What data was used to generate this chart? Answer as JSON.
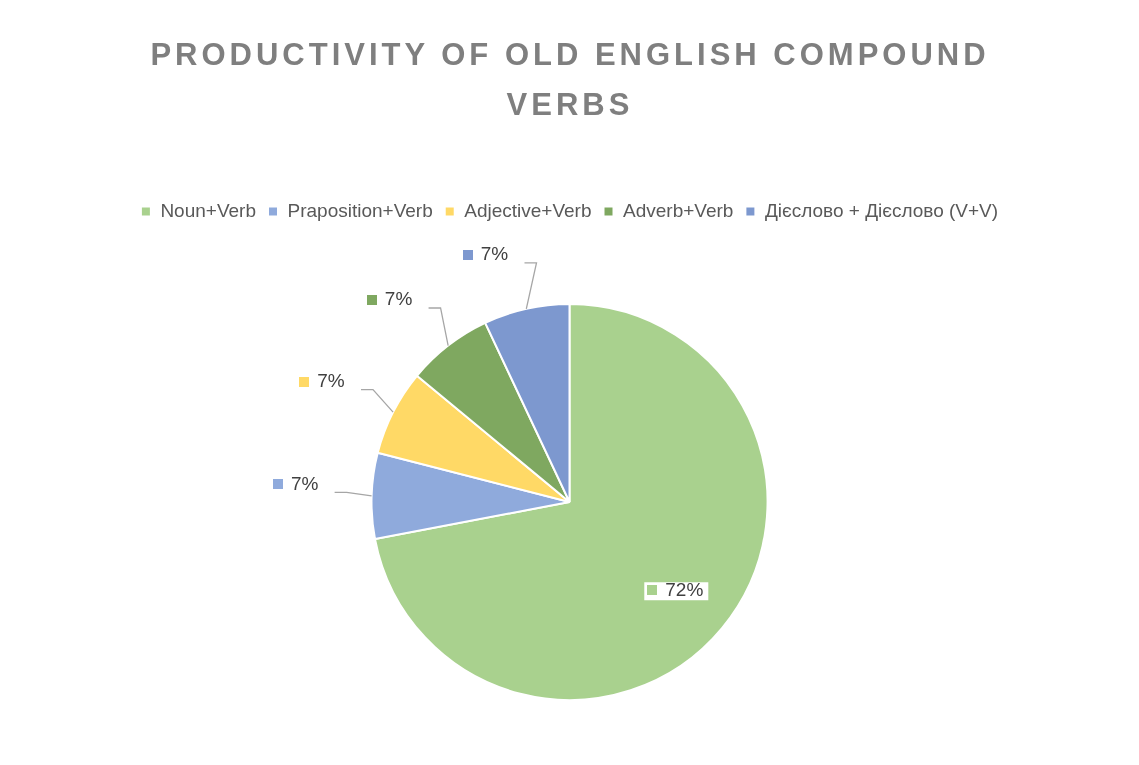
{
  "chart_data": {
    "type": "pie",
    "title": "PRODUCTIVITY OF OLD ENGLISH COMPOUND VERBS",
    "categories": [
      "Noun+Verb",
      "Praposition+Verb",
      "Adjective+Verb",
      "Adverb+Verb",
      "Дієслово + Дієслово (V+V)"
    ],
    "values": [
      72,
      7,
      7,
      7,
      7
    ],
    "value_labels": [
      "72%",
      "7%",
      "7%",
      "7%",
      "7%"
    ],
    "colors": [
      "#a9d18e",
      "#8faadc",
      "#ffd966",
      "#7fa860",
      "#7d98cf"
    ],
    "legend": "top"
  }
}
